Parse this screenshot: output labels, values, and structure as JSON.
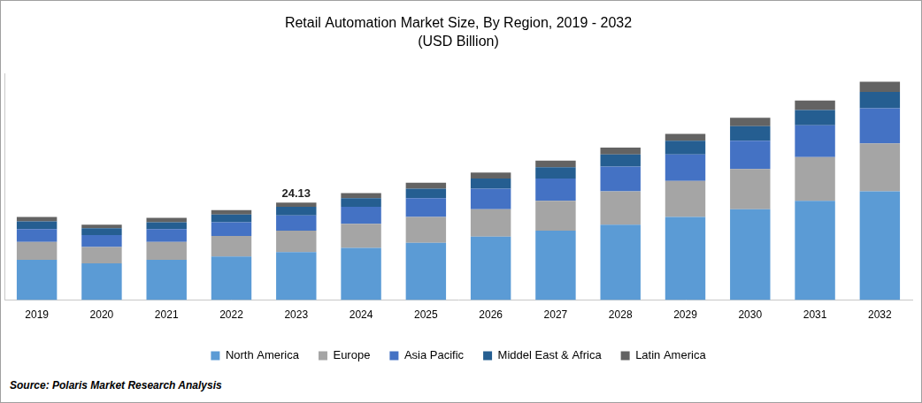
{
  "chart_data": {
    "type": "bar",
    "title": "Retail Automation Market Size, By Region, 2019 - 2032",
    "subtitle": "(USD Billion)",
    "source": "Source: Polaris Market Research Analysis",
    "categories": [
      "2019",
      "2020",
      "2021",
      "2022",
      "2023",
      "2024",
      "2025",
      "2026",
      "2027",
      "2028",
      "2029",
      "2030",
      "2031",
      "2032"
    ],
    "series": [
      {
        "name": "North America",
        "color": "#5b9bd5",
        "values": [
          9.96,
          9.11,
          9.96,
          10.8,
          11.86,
          12.92,
          14.19,
          15.68,
          17.16,
          18.64,
          20.55,
          22.46,
          24.58,
          26.9
        ]
      },
      {
        "name": "Europe",
        "color": "#a5a5a5",
        "values": [
          4.45,
          4.03,
          4.45,
          5.08,
          5.3,
          5.93,
          6.36,
          6.78,
          7.42,
          8.26,
          8.9,
          9.96,
          10.8,
          11.86
        ]
      },
      {
        "name": "Asia Pacific",
        "color": "#4472c4",
        "values": [
          3.18,
          2.97,
          3.18,
          3.39,
          3.81,
          4.24,
          4.66,
          5.08,
          5.51,
          6.14,
          6.57,
          6.99,
          7.84,
          8.69
        ]
      },
      {
        "name": "Middel East & Africa",
        "color": "#255e91",
        "values": [
          1.9,
          1.69,
          1.69,
          1.91,
          2.12,
          2.12,
          2.33,
          2.54,
          2.75,
          2.97,
          3.39,
          3.6,
          3.81,
          4.03
        ]
      },
      {
        "name": "Latin America",
        "color": "#636363",
        "values": [
          1.06,
          0.85,
          1.06,
          1.06,
          1.04,
          1.27,
          1.48,
          1.48,
          1.69,
          1.69,
          1.69,
          2.12,
          2.33,
          2.54
        ]
      }
    ],
    "annotations": [
      {
        "text": "24.13",
        "category": "2023",
        "value": 24.13
      }
    ],
    "ylim": [
      0,
      56
    ],
    "stacked": true,
    "grid": false,
    "legend": "bottom",
    "tick_labels": "x"
  }
}
